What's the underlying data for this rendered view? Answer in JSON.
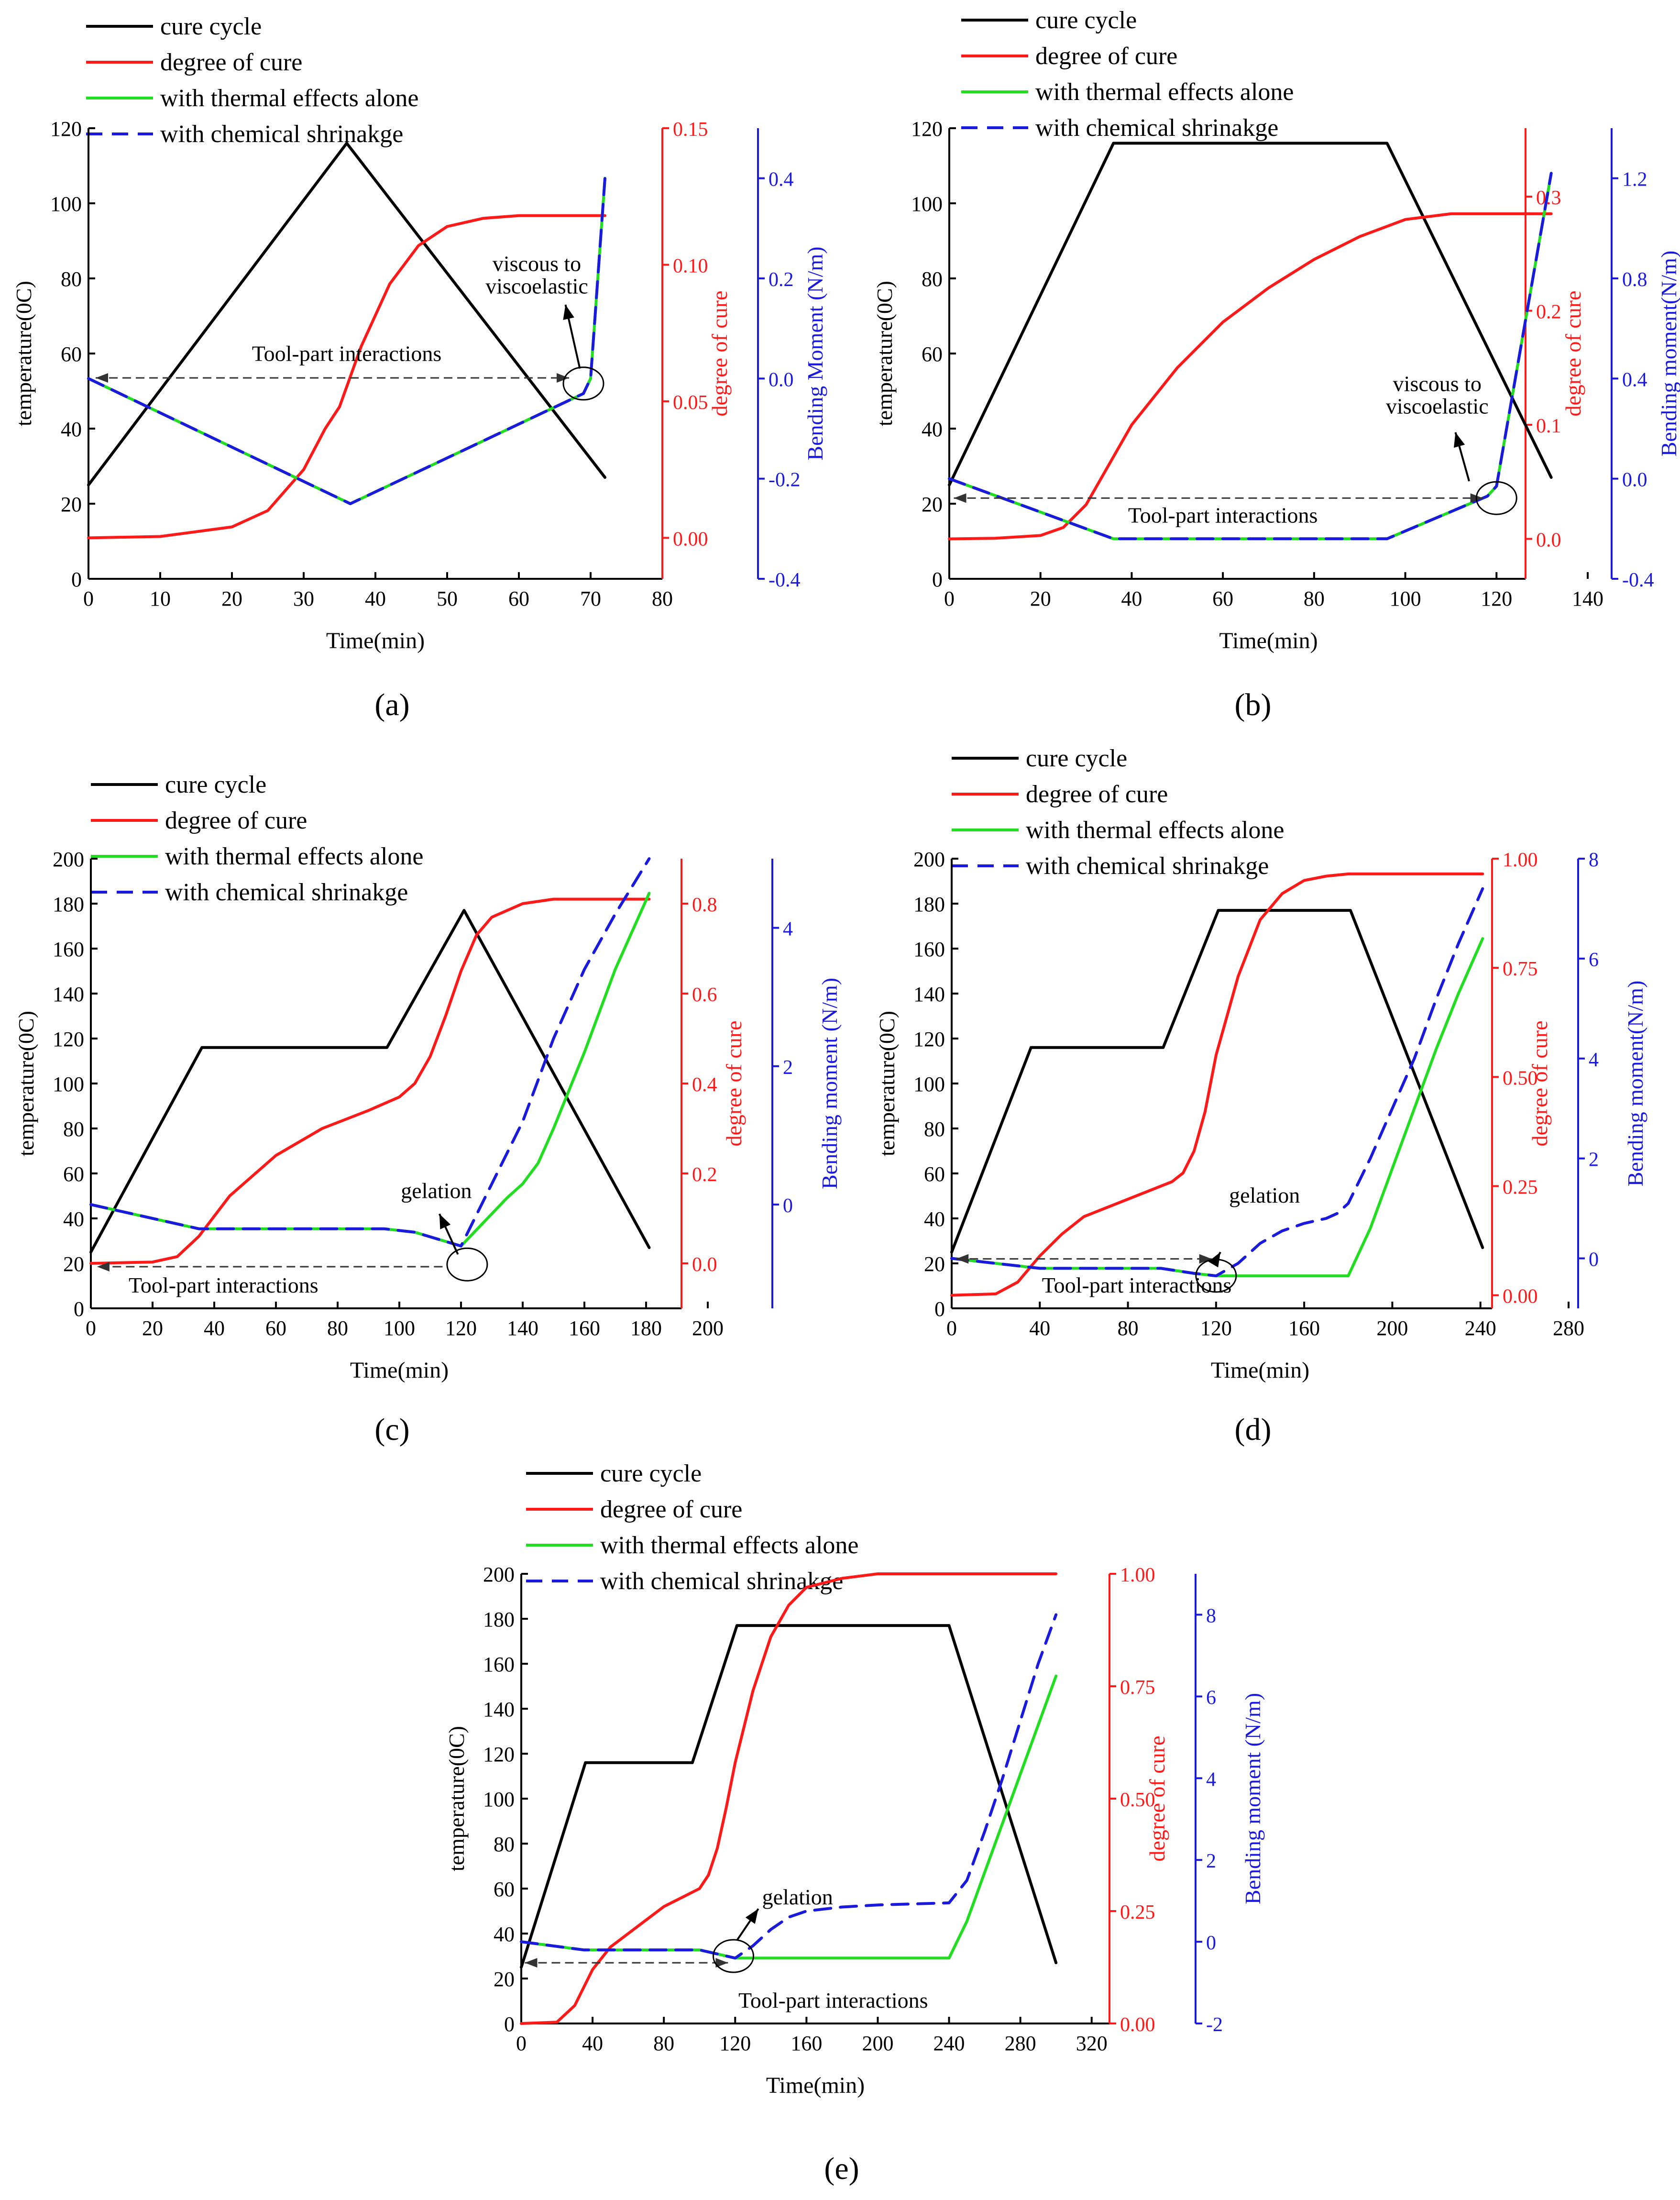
{
  "colors": {
    "cure_cycle": "#000000",
    "degree_of_cure": "#ff1a1a",
    "thermal": "#22dd22",
    "chemical": "#1a1add",
    "axis_black": "#000000",
    "axis_red": "#ff1a1a",
    "axis_blue": "#1a1add"
  },
  "legend": [
    "cure cycle",
    "degree of cure",
    "with thermal effects alone",
    "with chemical shrinakge"
  ],
  "chart_data": [
    {
      "panel": "(a)",
      "type": "line",
      "xlabel": "Time(min)",
      "ylabel": "temperature(0C)",
      "y2label": "degree of cure",
      "y3label": "Bending Moment (N/m)",
      "xlim": [
        0,
        80
      ],
      "xticks": [
        0,
        10,
        20,
        30,
        40,
        50,
        60,
        70,
        80
      ],
      "ylim": [
        0,
        120
      ],
      "yticks": [
        0,
        20,
        40,
        60,
        80,
        100,
        120
      ],
      "y2lim": [
        -0.015,
        0.15
      ],
      "y2ticks": [
        0.0,
        0.05,
        0.1,
        0.15
      ],
      "y2ticklabels": [
        "0.00",
        "0.05",
        "0.10",
        "0.15"
      ],
      "y3lim": [
        -0.4,
        0.5
      ],
      "y3ticks": [
        -0.4,
        -0.2,
        0.0,
        0.2,
        0.4
      ],
      "y3ticklabels": [
        "-0.4",
        "-0.2",
        "0.0",
        "0.2",
        "0.4"
      ],
      "series": [
        {
          "name": "cure cycle",
          "axis": "y",
          "x": [
            0,
            36,
            72
          ],
          "y": [
            25,
            116,
            27
          ]
        },
        {
          "name": "degree of cure",
          "axis": "y2",
          "x": [
            0,
            10,
            20,
            25,
            30,
            33,
            35,
            38,
            42,
            46,
            50,
            55,
            60,
            65,
            72
          ],
          "y": [
            0,
            0.0005,
            0.004,
            0.01,
            0.025,
            0.04,
            0.048,
            0.07,
            0.093,
            0.107,
            0.114,
            0.117,
            0.118,
            0.118,
            0.118
          ]
        },
        {
          "name": "with thermal effects alone",
          "axis": "y3",
          "x": [
            0,
            36.5,
            69,
            70,
            72
          ],
          "y": [
            0.0,
            -0.25,
            -0.03,
            0.0,
            0.4
          ]
        },
        {
          "name": "with chemical shrinakge",
          "axis": "y3",
          "x": [
            0,
            36.5,
            69,
            70,
            72
          ],
          "y": [
            0.0,
            -0.25,
            -0.03,
            0.0,
            0.4
          ]
        }
      ],
      "annotations": [
        {
          "text": "Tool-part  interactions",
          "x": 36,
          "y": 58
        },
        {
          "text": "viscous to",
          "x": 62.5,
          "y": 82
        },
        {
          "text": "viscoelastic",
          "x": 62.5,
          "y": 76
        }
      ],
      "arrow": {
        "x1": 1,
        "x2": 67,
        "y": 53.5
      },
      "ellipse": {
        "x": 69,
        "y": 52
      },
      "pointer": {
        "x1": 68.5,
        "y1": 56,
        "x2": 66.5,
        "y2": 73
      }
    },
    {
      "panel": "(b)",
      "type": "line",
      "xlabel": "Time(min)",
      "ylabel": "temperature(0C)",
      "y2label": "degree of cure",
      "y3label": "Bending moment(N/m)",
      "xlim": [
        0,
        140
      ],
      "xticks": [
        0,
        20,
        40,
        60,
        80,
        100,
        120,
        140
      ],
      "ylim": [
        0,
        120
      ],
      "yticks": [
        0,
        20,
        40,
        60,
        80,
        100,
        120
      ],
      "y2lim": [
        -0.035,
        0.36
      ],
      "y2ticks": [
        0.0,
        0.1,
        0.2,
        0.3
      ],
      "y2ticklabels": [
        "0.0",
        "0.1",
        "0.2",
        "0.3"
      ],
      "y3lim": [
        -0.4,
        1.4
      ],
      "y3ticks": [
        -0.4,
        0.0,
        0.4,
        0.8,
        1.2
      ],
      "y3ticklabels": [
        "-0.4",
        "0.0",
        "0.4",
        "0.8",
        "1.2"
      ],
      "series": [
        {
          "name": "cure cycle",
          "axis": "y",
          "x": [
            0,
            36,
            96,
            132
          ],
          "y": [
            25,
            116,
            116,
            27
          ]
        },
        {
          "name": "degree of cure",
          "axis": "y2",
          "x": [
            0,
            10,
            20,
            25,
            30,
            35,
            40,
            50,
            60,
            70,
            80,
            90,
            100,
            110,
            120,
            132
          ],
          "y": [
            0,
            0.0005,
            0.003,
            0.01,
            0.03,
            0.065,
            0.1,
            0.15,
            0.19,
            0.22,
            0.245,
            0.265,
            0.28,
            0.285,
            0.285,
            0.285
          ]
        },
        {
          "name": "with thermal effects alone",
          "axis": "y3",
          "x": [
            0,
            36,
            96,
            118,
            120,
            132
          ],
          "y": [
            0.0,
            -0.24,
            -0.24,
            -0.07,
            -0.03,
            1.22
          ]
        },
        {
          "name": "with chemical shrinakge",
          "axis": "y3",
          "x": [
            0,
            36,
            96,
            118,
            120,
            132
          ],
          "y": [
            0.0,
            -0.24,
            -0.24,
            -0.07,
            -0.03,
            1.22
          ]
        }
      ],
      "annotations": [
        {
          "text": "Tool-part interactions",
          "x": 60,
          "y": 15
        },
        {
          "text": "viscous to",
          "x": 107,
          "y": 50
        },
        {
          "text": "viscoelastic",
          "x": 107,
          "y": 44
        }
      ],
      "arrow": {
        "x1": 1,
        "x2": 117,
        "y": 21.5
      },
      "ellipse": {
        "x": 120,
        "y": 21.5
      },
      "pointer": {
        "x1": 114,
        "y1": 26,
        "x2": 111,
        "y2": 39
      }
    },
    {
      "panel": "(c)",
      "type": "line",
      "xlabel": "Time(min)",
      "ylabel": "temperature(0C)",
      "y2label": "degree of cure",
      "y3label": "Bending moment (N/m)",
      "xlim": [
        0,
        200
      ],
      "xticks": [
        0,
        20,
        40,
        60,
        80,
        100,
        120,
        140,
        160,
        180,
        200
      ],
      "ylim": [
        0,
        200
      ],
      "yticks": [
        0,
        20,
        40,
        60,
        80,
        100,
        120,
        140,
        160,
        180,
        200
      ],
      "y2lim": [
        -0.1,
        0.9
      ],
      "y2ticks": [
        0.0,
        0.2,
        0.4,
        0.6,
        0.8
      ],
      "y2ticklabels": [
        "0.0",
        "0.2",
        "0.4",
        "0.6",
        "0.8"
      ],
      "y3lim": [
        -1.5,
        5.0
      ],
      "y3ticks": [
        0,
        2,
        4
      ],
      "y3ticklabels": [
        "0",
        "2",
        "4"
      ],
      "series": [
        {
          "name": "cure cycle",
          "axis": "y",
          "x": [
            0,
            36,
            96,
            121,
            181
          ],
          "y": [
            25,
            116,
            116,
            177,
            27
          ]
        },
        {
          "name": "degree of cure",
          "axis": "y2",
          "x": [
            0,
            20,
            28,
            35,
            45,
            60,
            75,
            90,
            100,
            105,
            110,
            115,
            120,
            125,
            130,
            140,
            150,
            160,
            181
          ],
          "y": [
            0,
            0.003,
            0.015,
            0.06,
            0.15,
            0.24,
            0.3,
            0.34,
            0.37,
            0.4,
            0.46,
            0.55,
            0.65,
            0.73,
            0.77,
            0.8,
            0.81,
            0.81,
            0.81
          ]
        },
        {
          "name": "with thermal effects alone",
          "axis": "y3",
          "x": [
            0,
            35,
            95,
            105,
            120,
            135,
            140,
            145,
            150,
            160,
            170,
            181
          ],
          "y": [
            0,
            -0.35,
            -0.35,
            -0.4,
            -0.6,
            0.1,
            0.3,
            0.6,
            1.1,
            2.2,
            3.4,
            4.5
          ]
        },
        {
          "name": "with chemical shrinakge",
          "axis": "y3",
          "x": [
            0,
            35,
            95,
            105,
            120,
            130,
            140,
            145,
            150,
            160,
            170,
            181
          ],
          "y": [
            0,
            -0.35,
            -0.35,
            -0.4,
            -0.6,
            0.3,
            1.2,
            1.8,
            2.4,
            3.4,
            4.2,
            5.0
          ]
        }
      ],
      "annotations": [
        {
          "text": "Tool-part interactions",
          "x": 43,
          "y": 7
        },
        {
          "text": "gelation",
          "x": 112,
          "y": 49
        }
      ],
      "arrow": {
        "x1": 114,
        "x2": 2,
        "y": 18.5
      },
      "ellipse": {
        "x": 122,
        "y": 19.5
      },
      "pointer": {
        "x1": 119,
        "y1": 24,
        "x2": 113,
        "y2": 42
      }
    },
    {
      "panel": "(d)",
      "type": "line",
      "xlabel": "Time(min)",
      "ylabel": "temperature(0C)",
      "y2label": "degree of cure",
      "y3label": "Bending moment(N/m)",
      "xlim": [
        0,
        280
      ],
      "xticks": [
        0,
        40,
        80,
        120,
        160,
        200,
        240,
        280
      ],
      "ylim": [
        0,
        200
      ],
      "yticks": [
        0,
        20,
        40,
        60,
        80,
        100,
        120,
        140,
        160,
        180,
        200
      ],
      "y2lim": [
        -0.03,
        1.0
      ],
      "y2ticks": [
        0.0,
        0.25,
        0.5,
        0.75,
        1.0
      ],
      "y2ticklabels": [
        "0.00",
        "0.25",
        "0.50",
        "0.75",
        "1.00"
      ],
      "y3lim": [
        -1.0,
        8.0
      ],
      "y3ticks": [
        0,
        2,
        4,
        6,
        8
      ],
      "y3ticklabels": [
        "0",
        "2",
        "4",
        "6",
        "8"
      ],
      "series": [
        {
          "name": "cure cycle",
          "axis": "y",
          "x": [
            0,
            36,
            96,
            121,
            181,
            241
          ],
          "y": [
            25,
            116,
            116,
            177,
            177,
            27
          ]
        },
        {
          "name": "degree of cure",
          "axis": "y2",
          "x": [
            0,
            20,
            30,
            40,
            50,
            60,
            70,
            80,
            90,
            100,
            105,
            110,
            115,
            120,
            130,
            140,
            150,
            160,
            170,
            180,
            200,
            241
          ],
          "y": [
            0,
            0.003,
            0.03,
            0.09,
            0.14,
            0.18,
            0.2,
            0.22,
            0.24,
            0.26,
            0.28,
            0.33,
            0.42,
            0.55,
            0.73,
            0.86,
            0.92,
            0.95,
            0.96,
            0.965,
            0.965,
            0.965
          ]
        },
        {
          "name": "with thermal effects alone",
          "axis": "y3",
          "x": [
            0,
            40,
            95,
            110,
            120,
            130,
            150,
            180,
            190,
            200,
            210,
            220,
            230,
            241
          ],
          "y": [
            0,
            -0.2,
            -0.2,
            -0.3,
            -0.35,
            -0.35,
            -0.35,
            -0.35,
            0.6,
            1.8,
            3.0,
            4.2,
            5.3,
            6.4
          ]
        },
        {
          "name": "with chemical shrinakge",
          "axis": "y3",
          "x": [
            0,
            40,
            95,
            110,
            120,
            130,
            140,
            150,
            160,
            170,
            175,
            180,
            190,
            200,
            210,
            220,
            230,
            241
          ],
          "y": [
            0,
            -0.2,
            -0.2,
            -0.3,
            -0.35,
            -0.1,
            0.3,
            0.55,
            0.7,
            0.8,
            0.9,
            1.1,
            2.0,
            3.0,
            4.0,
            5.2,
            6.3,
            7.4
          ]
        }
      ],
      "annotations": [
        {
          "text": "Tool-part interactions",
          "x": 84,
          "y": 7
        },
        {
          "text": "gelation",
          "x": 142,
          "y": 47
        }
      ],
      "arrow": {
        "x1": 2,
        "x2": 118,
        "y": 22
      },
      "ellipse": {
        "x": 120,
        "y": 14.5
      },
      "pointer": {
        "x1": 119,
        "y1": 20,
        "x2": 122,
        "y2": 25
      }
    },
    {
      "panel": "(e)",
      "type": "line",
      "xlabel": "Time(min)",
      "ylabel": "temperature(0C)",
      "y2label": "degree of cure",
      "y3label": "Bending moment (N/m)",
      "xlim": [
        0,
        330
      ],
      "xticks": [
        0,
        40,
        80,
        120,
        160,
        200,
        240,
        280,
        320
      ],
      "ylim": [
        0,
        200
      ],
      "yticks": [
        0,
        20,
        40,
        60,
        80,
        100,
        120,
        140,
        160,
        180,
        200
      ],
      "y2lim": [
        0.0,
        1.0
      ],
      "y2ticks": [
        0.0,
        0.25,
        0.5,
        0.75,
        1.0
      ],
      "y2ticklabels": [
        "0.00",
        "0.25",
        "0.50",
        "0.75",
        "1.00"
      ],
      "y3lim": [
        -2.0,
        9.0
      ],
      "y3ticks": [
        -2,
        0,
        2,
        4,
        6,
        8
      ],
      "y3ticklabels": [
        "-2",
        "0",
        "2",
        "4",
        "6",
        "8"
      ],
      "series": [
        {
          "name": "cure cycle",
          "axis": "y",
          "x": [
            0,
            36,
            96,
            121,
            240,
            300
          ],
          "y": [
            25,
            116,
            116,
            177,
            177,
            27
          ]
        },
        {
          "name": "degree of cure",
          "axis": "y2",
          "x": [
            0,
            20,
            30,
            40,
            50,
            60,
            70,
            80,
            90,
            100,
            105,
            110,
            115,
            120,
            130,
            140,
            150,
            160,
            180,
            200,
            300
          ],
          "y": [
            0,
            0.003,
            0.04,
            0.12,
            0.17,
            0.2,
            0.23,
            0.26,
            0.28,
            0.3,
            0.33,
            0.39,
            0.48,
            0.58,
            0.74,
            0.86,
            0.93,
            0.97,
            0.99,
            1.0,
            1.0
          ]
        },
        {
          "name": "with thermal effects alone",
          "axis": "y3",
          "x": [
            0,
            35,
            100,
            110,
            120,
            130,
            240,
            250,
            260,
            270,
            280,
            290,
            300
          ],
          "y": [
            0,
            -0.2,
            -0.2,
            -0.3,
            -0.4,
            -0.4,
            -0.4,
            0.5,
            1.7,
            2.9,
            4.1,
            5.3,
            6.5
          ]
        },
        {
          "name": "with chemical shrinakge",
          "axis": "y3",
          "x": [
            0,
            35,
            100,
            110,
            120,
            130,
            140,
            150,
            160,
            180,
            200,
            240,
            250,
            260,
            270,
            280,
            290,
            300
          ],
          "y": [
            0,
            -0.2,
            -0.2,
            -0.3,
            -0.4,
            -0.1,
            0.3,
            0.6,
            0.75,
            0.85,
            0.9,
            0.95,
            1.5,
            2.7,
            4.0,
            5.4,
            6.8,
            8.0
          ]
        }
      ],
      "annotations": [
        {
          "text": "Tool-part interactions",
          "x": 175,
          "y": 7
        },
        {
          "text": "gelation",
          "x": 155,
          "y": 53
        }
      ],
      "arrow": {
        "x1": 2,
        "x2": 116,
        "y": 27
      },
      "ellipse": {
        "x": 119,
        "y": 30
      },
      "pointer": {
        "x1": 121,
        "y1": 37,
        "x2": 133,
        "y2": 51
      }
    }
  ]
}
